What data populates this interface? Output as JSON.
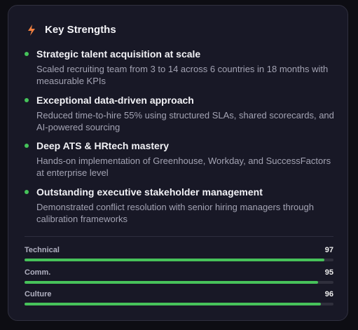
{
  "header": {
    "title": "Key Strengths"
  },
  "items": [
    {
      "title": "Strategic talent acquisition at scale",
      "description": "Scaled recruiting team from 3 to 14 across 6 countries in 18 months with measurable KPIs"
    },
    {
      "title": "Exceptional data-driven approach",
      "description": "Reduced time-to-hire 55% using structured SLAs, shared scorecards, and AI-powered sourcing"
    },
    {
      "title": "Deep ATS & HRtech mastery",
      "description": "Hands-on implementation of Greenhouse, Workday, and SuccessFactors at enterprise level"
    },
    {
      "title": "Outstanding executive stakeholder management",
      "description": "Demonstrated conflict resolution with senior hiring managers through calibration frameworks"
    }
  ],
  "scores": [
    {
      "label": "Technical",
      "value": 97
    },
    {
      "label": "Comm.",
      "value": 95
    },
    {
      "label": "Culture",
      "value": 96
    }
  ]
}
